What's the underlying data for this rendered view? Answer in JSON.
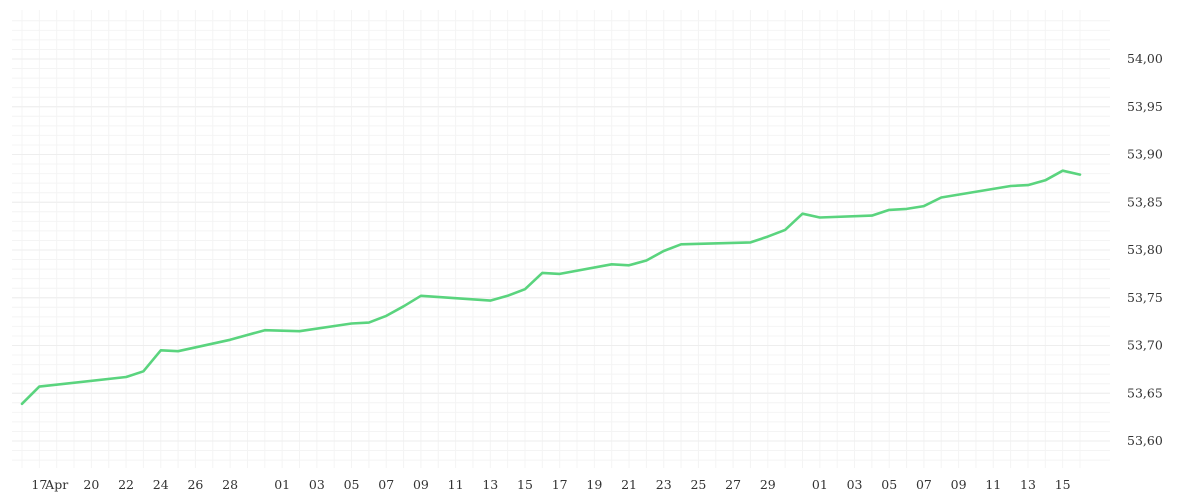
{
  "chart_data": {
    "type": "line",
    "title": "",
    "xlabel": "",
    "ylabel": "",
    "ylim": [
      53.57,
      54.04
    ],
    "xlim": [
      "2024-04-16",
      "2024-06-16"
    ],
    "grid": true,
    "legend": "none",
    "y_axis_position": "right",
    "line_color": "#5ad47e",
    "y_ticks": [
      {
        "value": 53.6,
        "label": "53,60"
      },
      {
        "value": 53.65,
        "label": "53,65"
      },
      {
        "value": 53.7,
        "label": "53,70"
      },
      {
        "value": 53.75,
        "label": "53,75"
      },
      {
        "value": 53.8,
        "label": "53,80"
      },
      {
        "value": 53.85,
        "label": "53,85"
      },
      {
        "value": 53.9,
        "label": "53,90"
      },
      {
        "value": 53.95,
        "label": "53,95"
      },
      {
        "value": 54.0,
        "label": "54,00"
      }
    ],
    "x_ticks": [
      {
        "date": "2024-04-17",
        "label": "17"
      },
      {
        "date": "2024-04-18",
        "label": "Apr"
      },
      {
        "date": "2024-04-20",
        "label": "20"
      },
      {
        "date": "2024-04-22",
        "label": "22"
      },
      {
        "date": "2024-04-24",
        "label": "24"
      },
      {
        "date": "2024-04-26",
        "label": "26"
      },
      {
        "date": "2024-04-28",
        "label": "28"
      },
      {
        "date": "2024-05-01",
        "label": "01"
      },
      {
        "date": "2024-05-03",
        "label": "03"
      },
      {
        "date": "2024-05-05",
        "label": "05"
      },
      {
        "date": "2024-05-07",
        "label": "07"
      },
      {
        "date": "2024-05-09",
        "label": "09"
      },
      {
        "date": "2024-05-11",
        "label": "11"
      },
      {
        "date": "2024-05-13",
        "label": "13"
      },
      {
        "date": "2024-05-15",
        "label": "15"
      },
      {
        "date": "2024-05-17",
        "label": "17"
      },
      {
        "date": "2024-05-19",
        "label": "19"
      },
      {
        "date": "2024-05-21",
        "label": "21"
      },
      {
        "date": "2024-05-23",
        "label": "23"
      },
      {
        "date": "2024-05-25",
        "label": "25"
      },
      {
        "date": "2024-05-27",
        "label": "27"
      },
      {
        "date": "2024-05-29",
        "label": "29"
      },
      {
        "date": "2024-06-01",
        "label": "01"
      },
      {
        "date": "2024-06-03",
        "label": "03"
      },
      {
        "date": "2024-06-05",
        "label": "05"
      },
      {
        "date": "2024-06-07",
        "label": "07"
      },
      {
        "date": "2024-06-09",
        "label": "09"
      },
      {
        "date": "2024-06-11",
        "label": "11"
      },
      {
        "date": "2024-06-13",
        "label": "13"
      },
      {
        "date": "2024-06-15",
        "label": "15"
      }
    ],
    "series": [
      {
        "points": [
          {
            "x": "2024-04-16",
            "y": 53.639
          },
          {
            "x": "2024-04-17",
            "y": 53.657
          },
          {
            "x": "2024-04-22",
            "y": 53.667
          },
          {
            "x": "2024-04-23",
            "y": 53.673
          },
          {
            "x": "2024-04-24",
            "y": 53.695
          },
          {
            "x": "2024-04-25",
            "y": 53.694
          },
          {
            "x": "2024-04-28",
            "y": 53.706
          },
          {
            "x": "2024-04-30",
            "y": 53.716
          },
          {
            "x": "2024-05-02",
            "y": 53.715
          },
          {
            "x": "2024-05-05",
            "y": 53.723
          },
          {
            "x": "2024-05-06",
            "y": 53.724
          },
          {
            "x": "2024-05-07",
            "y": 53.731
          },
          {
            "x": "2024-05-08",
            "y": 53.741
          },
          {
            "x": "2024-05-09",
            "y": 53.752
          },
          {
            "x": "2024-05-13",
            "y": 53.747
          },
          {
            "x": "2024-05-14",
            "y": 53.752
          },
          {
            "x": "2024-05-15",
            "y": 53.759
          },
          {
            "x": "2024-05-16",
            "y": 53.776
          },
          {
            "x": "2024-05-17",
            "y": 53.775
          },
          {
            "x": "2024-05-20",
            "y": 53.785
          },
          {
            "x": "2024-05-21",
            "y": 53.784
          },
          {
            "x": "2024-05-22",
            "y": 53.789
          },
          {
            "x": "2024-05-23",
            "y": 53.799
          },
          {
            "x": "2024-05-24",
            "y": 53.806
          },
          {
            "x": "2024-05-28",
            "y": 53.808
          },
          {
            "x": "2024-05-29",
            "y": 53.814
          },
          {
            "x": "2024-05-30",
            "y": 53.821
          },
          {
            "x": "2024-05-31",
            "y": 53.838
          },
          {
            "x": "2024-06-01",
            "y": 53.834
          },
          {
            "x": "2024-06-04",
            "y": 53.836
          },
          {
            "x": "2024-06-05",
            "y": 53.842
          },
          {
            "x": "2024-06-06",
            "y": 53.843
          },
          {
            "x": "2024-06-07",
            "y": 53.846
          },
          {
            "x": "2024-06-08",
            "y": 53.855
          },
          {
            "x": "2024-06-12",
            "y": 53.867
          },
          {
            "x": "2024-06-13",
            "y": 53.868
          },
          {
            "x": "2024-06-14",
            "y": 53.873
          },
          {
            "x": "2024-06-15",
            "y": 53.883
          },
          {
            "x": "2024-06-16",
            "y": 53.879
          }
        ]
      }
    ]
  }
}
